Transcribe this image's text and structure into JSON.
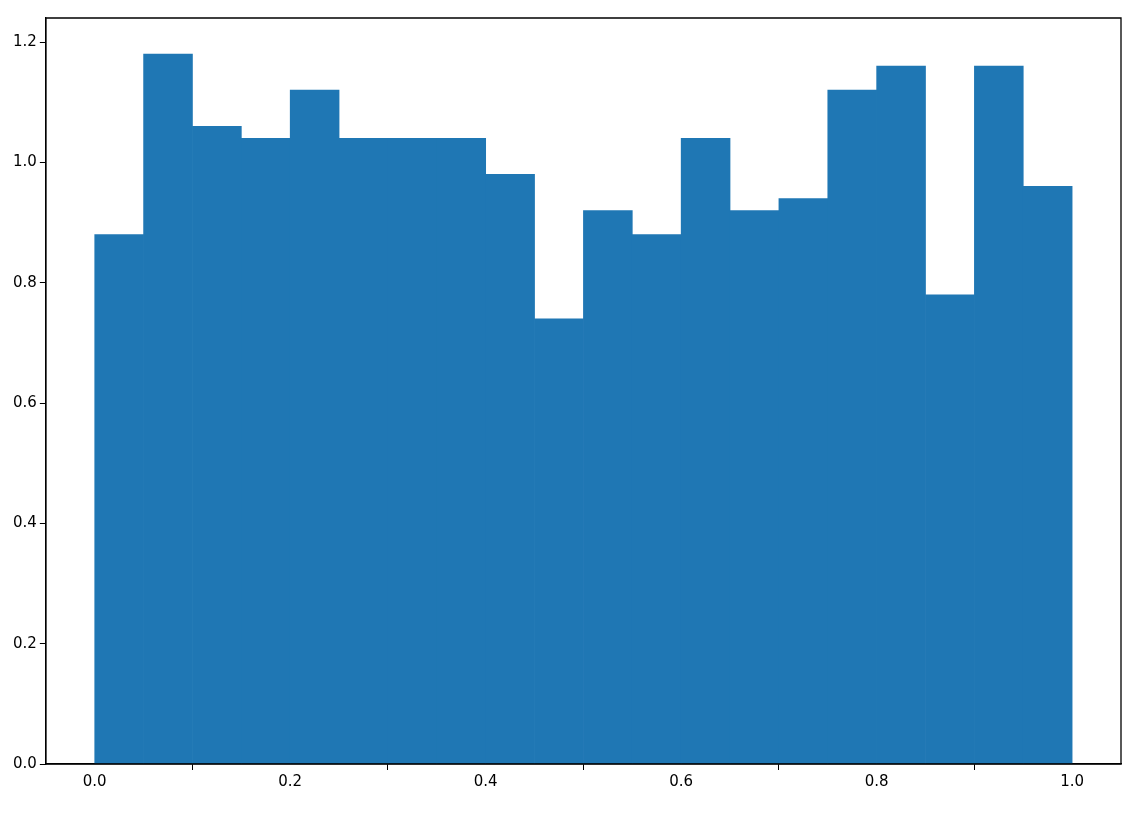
{
  "chart_data": {
    "type": "histogram",
    "bins": [
      0.0,
      0.05,
      0.1,
      0.15,
      0.2,
      0.25,
      0.3,
      0.35,
      0.4,
      0.45,
      0.5,
      0.55,
      0.6,
      0.65,
      0.7,
      0.75,
      0.8,
      0.85,
      0.9,
      0.95,
      1.0
    ],
    "values": [
      0.88,
      1.18,
      1.06,
      1.04,
      1.12,
      1.04,
      1.04,
      1.04,
      0.98,
      0.74,
      0.92,
      0.88,
      1.04,
      0.92,
      0.94,
      1.12,
      1.16,
      0.78,
      1.16,
      0.96
    ],
    "color": "#1f77b4",
    "xlim": [
      -0.05,
      1.05
    ],
    "xticks": [
      {
        "value": 0,
        "label": "0.0"
      },
      {
        "value": 0.2,
        "label": "0.2"
      },
      {
        "value": 0.4,
        "label": "0.4"
      },
      {
        "value": 0.6,
        "label": "0.6"
      },
      {
        "value": 0.8,
        "label": "0.8"
      },
      {
        "value": 1,
        "label": "1.0"
      }
    ],
    "ylim": [
      0,
      1.24
    ],
    "yticks": [
      {
        "value": 0,
        "label": "0.0"
      },
      {
        "value": 0.2,
        "label": "0.2"
      },
      {
        "value": 0.4,
        "label": "0.4"
      },
      {
        "value": 0.6,
        "label": "0.6"
      },
      {
        "value": 0.8,
        "label": "0.8"
      },
      {
        "value": 1,
        "label": "1.0"
      },
      {
        "value": 1.2,
        "label": "1.2"
      }
    ],
    "grid": false
  }
}
